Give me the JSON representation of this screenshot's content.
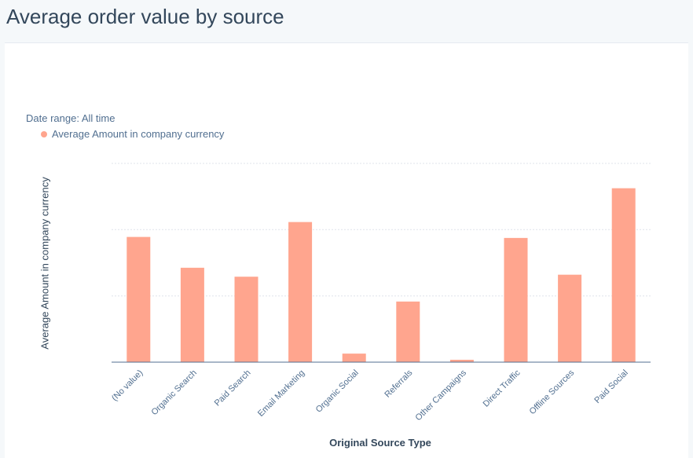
{
  "page": {
    "title": "Average order value by source"
  },
  "chart_data": {
    "type": "bar",
    "date_range": "Date range: All time",
    "legend": {
      "label": "Average Amount in company currency",
      "color": "#ffa58e"
    },
    "xlabel": "Original Source Type",
    "ylabel": "Average Amount in company currency",
    "categories": [
      "(No value)",
      "Organic Search",
      "Paid Search",
      "Email Marketing",
      "Organic Social",
      "Referrals",
      "Other Campaigns",
      "Direct Traffic",
      "Offline Sources",
      "Paid Social"
    ],
    "series": [
      {
        "name": "Average Amount in company currency",
        "values": [
          63,
          47.5,
          43,
          70.5,
          4.3,
          30.5,
          1.2,
          62.5,
          44,
          87.5
        ],
        "color": "#ffa58e"
      }
    ],
    "ylim": [
      0,
      100
    ],
    "gridlines": [
      33.3,
      66.7,
      100
    ],
    "grid": true
  }
}
